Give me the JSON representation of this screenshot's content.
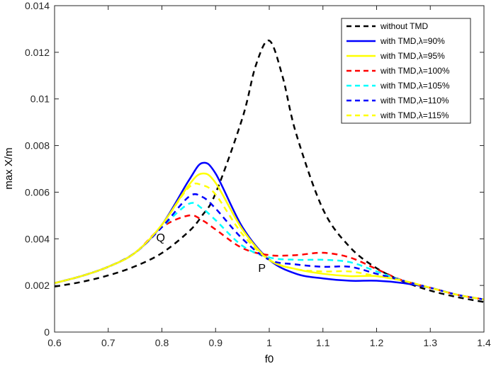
{
  "chart_data": {
    "type": "line",
    "title": "",
    "xlabel": "f0",
    "ylabel": "max X/m",
    "xlim": [
      0.6,
      1.4
    ],
    "ylim": [
      0,
      0.014
    ],
    "xticks": [
      "0.6",
      "0.7",
      "0.8",
      "0.9",
      "1",
      "1.1",
      "1.2",
      "1.3",
      "1.4"
    ],
    "yticks": [
      "0",
      "0.002",
      "0.004",
      "0.006",
      "0.008",
      "0.01",
      "0.012",
      "0.014"
    ],
    "grid": false,
    "legend_position": "top-right",
    "annotations": [
      {
        "text": "Q",
        "x": 0.8,
        "y": 0.0041
      },
      {
        "text": "P",
        "x": 0.99,
        "y": 0.0028
      }
    ],
    "series": [
      {
        "name": "without TMD",
        "color": "#000000",
        "dashed": true,
        "x": [
          0.6,
          0.65,
          0.7,
          0.75,
          0.8,
          0.85,
          0.875,
          0.9,
          0.95,
          0.975,
          1.0,
          1.025,
          1.05,
          1.1,
          1.15,
          1.2,
          1.25,
          1.3,
          1.35,
          1.4
        ],
        "y": [
          0.00195,
          0.00215,
          0.00243,
          0.00282,
          0.00339,
          0.00431,
          0.005,
          0.00595,
          0.00918,
          0.01144,
          0.0125,
          0.01094,
          0.00852,
          0.00527,
          0.00365,
          0.00274,
          0.00217,
          0.00178,
          0.0015,
          0.00129
        ]
      },
      {
        "name": "with TMD,λ=90%",
        "color": "#0000ff",
        "dashed": false,
        "x": [
          0.6,
          0.65,
          0.7,
          0.75,
          0.8,
          0.85,
          0.875,
          0.9,
          0.95,
          1.0,
          1.05,
          1.1,
          1.15,
          1.2,
          1.25,
          1.3,
          1.35,
          1.4
        ],
        "y": [
          0.0021,
          0.0024,
          0.0028,
          0.0034,
          0.0046,
          0.0065,
          0.00725,
          0.0068,
          0.0045,
          0.0031,
          0.0025,
          0.0023,
          0.0022,
          0.0022,
          0.0021,
          0.0019,
          0.0016,
          0.0014
        ]
      },
      {
        "name": "with TMD,λ=95%",
        "color": "#ffff00",
        "dashed": false,
        "x": [
          0.6,
          0.65,
          0.7,
          0.75,
          0.8,
          0.85,
          0.875,
          0.9,
          0.95,
          1.0,
          1.05,
          1.1,
          1.15,
          1.2,
          1.25,
          1.3,
          1.35,
          1.4
        ],
        "y": [
          0.0021,
          0.0024,
          0.0028,
          0.0034,
          0.0046,
          0.0063,
          0.0068,
          0.0064,
          0.0044,
          0.0031,
          0.0027,
          0.0025,
          0.0024,
          0.0024,
          0.0022,
          0.0019,
          0.0016,
          0.0014
        ]
      },
      {
        "name": "with TMD,λ=100%",
        "color": "#ff0000",
        "dashed": true,
        "x": [
          0.6,
          0.65,
          0.7,
          0.75,
          0.8,
          0.85,
          0.875,
          0.9,
          0.95,
          1.0,
          1.05,
          1.1,
          1.15,
          1.2,
          1.25,
          1.3,
          1.35,
          1.4
        ],
        "y": [
          0.0021,
          0.0024,
          0.0028,
          0.0034,
          0.0045,
          0.005,
          0.0048,
          0.0044,
          0.0036,
          0.0033,
          0.0033,
          0.0034,
          0.0032,
          0.0027,
          0.0022,
          0.0019,
          0.0016,
          0.0014
        ]
      },
      {
        "name": "with TMD,λ=105%",
        "color": "#00ffff",
        "dashed": true,
        "x": [
          0.6,
          0.65,
          0.7,
          0.75,
          0.8,
          0.85,
          0.875,
          0.9,
          0.95,
          1.0,
          1.05,
          1.1,
          1.15,
          1.2,
          1.25,
          1.3,
          1.35,
          1.4
        ],
        "y": [
          0.0021,
          0.0024,
          0.0028,
          0.0034,
          0.0045,
          0.0055,
          0.0053,
          0.0048,
          0.0037,
          0.0032,
          0.0031,
          0.0031,
          0.003,
          0.0026,
          0.0022,
          0.0019,
          0.0016,
          0.0014
        ]
      },
      {
        "name": "with TMD,λ=110%",
        "color": "#0000ff",
        "dashed": true,
        "x": [
          0.6,
          0.65,
          0.7,
          0.75,
          0.8,
          0.85,
          0.875,
          0.9,
          0.95,
          1.0,
          1.05,
          1.1,
          1.15,
          1.2,
          1.25,
          1.3,
          1.35,
          1.4
        ],
        "y": [
          0.0021,
          0.0024,
          0.0028,
          0.0034,
          0.0045,
          0.0058,
          0.0058,
          0.0053,
          0.004,
          0.0031,
          0.0029,
          0.0028,
          0.0028,
          0.0025,
          0.0022,
          0.0019,
          0.0016,
          0.0014
        ]
      },
      {
        "name": "with TMD,λ=115%",
        "color": "#ffff00",
        "dashed": true,
        "x": [
          0.6,
          0.65,
          0.7,
          0.75,
          0.8,
          0.85,
          0.875,
          0.9,
          0.95,
          1.0,
          1.05,
          1.1,
          1.15,
          1.2,
          1.25,
          1.3,
          1.35,
          1.4
        ],
        "y": [
          0.0021,
          0.0024,
          0.0028,
          0.0034,
          0.0046,
          0.0062,
          0.0063,
          0.0059,
          0.0042,
          0.0031,
          0.0027,
          0.0026,
          0.0026,
          0.0024,
          0.0022,
          0.0019,
          0.0016,
          0.0014
        ]
      }
    ]
  }
}
